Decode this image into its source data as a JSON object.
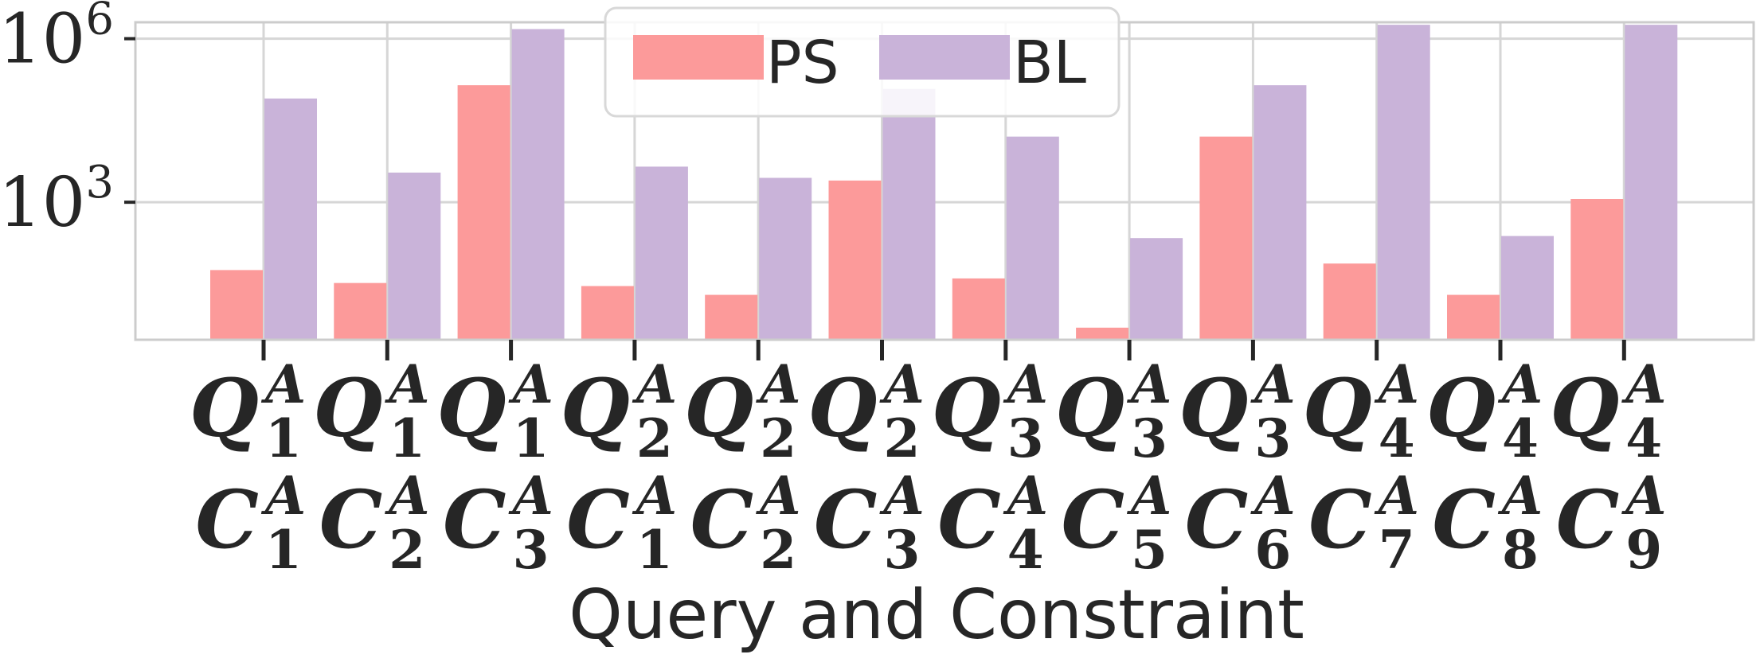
{
  "chart_data": {
    "type": "bar",
    "xlabel": "Query and Constraint",
    "ylabel": "",
    "yscale": "log",
    "ylim": [
      3,
      2000000
    ],
    "yticks": [
      {
        "value": 1000,
        "base": "10",
        "exp": "3"
      },
      {
        "value": 1000000,
        "base": "10",
        "exp": "6"
      }
    ],
    "grid": true,
    "legend_position": "top-center",
    "categories": [
      {
        "q": "Q",
        "q_sub": "1",
        "q_sup": "A",
        "c": "C",
        "c_sub": "1",
        "c_sup": "A"
      },
      {
        "q": "Q",
        "q_sub": "1",
        "q_sup": "A",
        "c": "C",
        "c_sub": "2",
        "c_sup": "A"
      },
      {
        "q": "Q",
        "q_sub": "1",
        "q_sup": "A",
        "c": "C",
        "c_sub": "3",
        "c_sup": "A"
      },
      {
        "q": "Q",
        "q_sub": "2",
        "q_sup": "A",
        "c": "C",
        "c_sub": "1",
        "c_sup": "A"
      },
      {
        "q": "Q",
        "q_sub": "2",
        "q_sup": "A",
        "c": "C",
        "c_sub": "2",
        "c_sup": "A"
      },
      {
        "q": "Q",
        "q_sub": "2",
        "q_sup": "A",
        "c": "C",
        "c_sub": "3",
        "c_sup": "A"
      },
      {
        "q": "Q",
        "q_sub": "3",
        "q_sup": "A",
        "c": "C",
        "c_sub": "4",
        "c_sup": "A"
      },
      {
        "q": "Q",
        "q_sub": "3",
        "q_sup": "A",
        "c": "C",
        "c_sub": "5",
        "c_sup": "A"
      },
      {
        "q": "Q",
        "q_sub": "3",
        "q_sup": "A",
        "c": "C",
        "c_sub": "6",
        "c_sup": "A"
      },
      {
        "q": "Q",
        "q_sub": "4",
        "q_sup": "A",
        "c": "C",
        "c_sub": "7",
        "c_sup": "A"
      },
      {
        "q": "Q",
        "q_sub": "4",
        "q_sup": "A",
        "c": "C",
        "c_sub": "8",
        "c_sup": "A"
      },
      {
        "q": "Q",
        "q_sub": "4",
        "q_sup": "A",
        "c": "C",
        "c_sub": "9",
        "c_sup": "A"
      }
    ],
    "series": [
      {
        "name": "PS",
        "color": "#fc9a9a",
        "values": [
          57,
          33,
          140000,
          29,
          20,
          2500,
          40,
          5,
          16000,
          75,
          20,
          1150
        ]
      },
      {
        "name": "BL",
        "color": "#c9b3d9",
        "values": [
          80000,
          3500,
          1500000,
          4500,
          2800,
          120000,
          16000,
          220,
          140000,
          1800000,
          240,
          1800000
        ]
      }
    ]
  }
}
